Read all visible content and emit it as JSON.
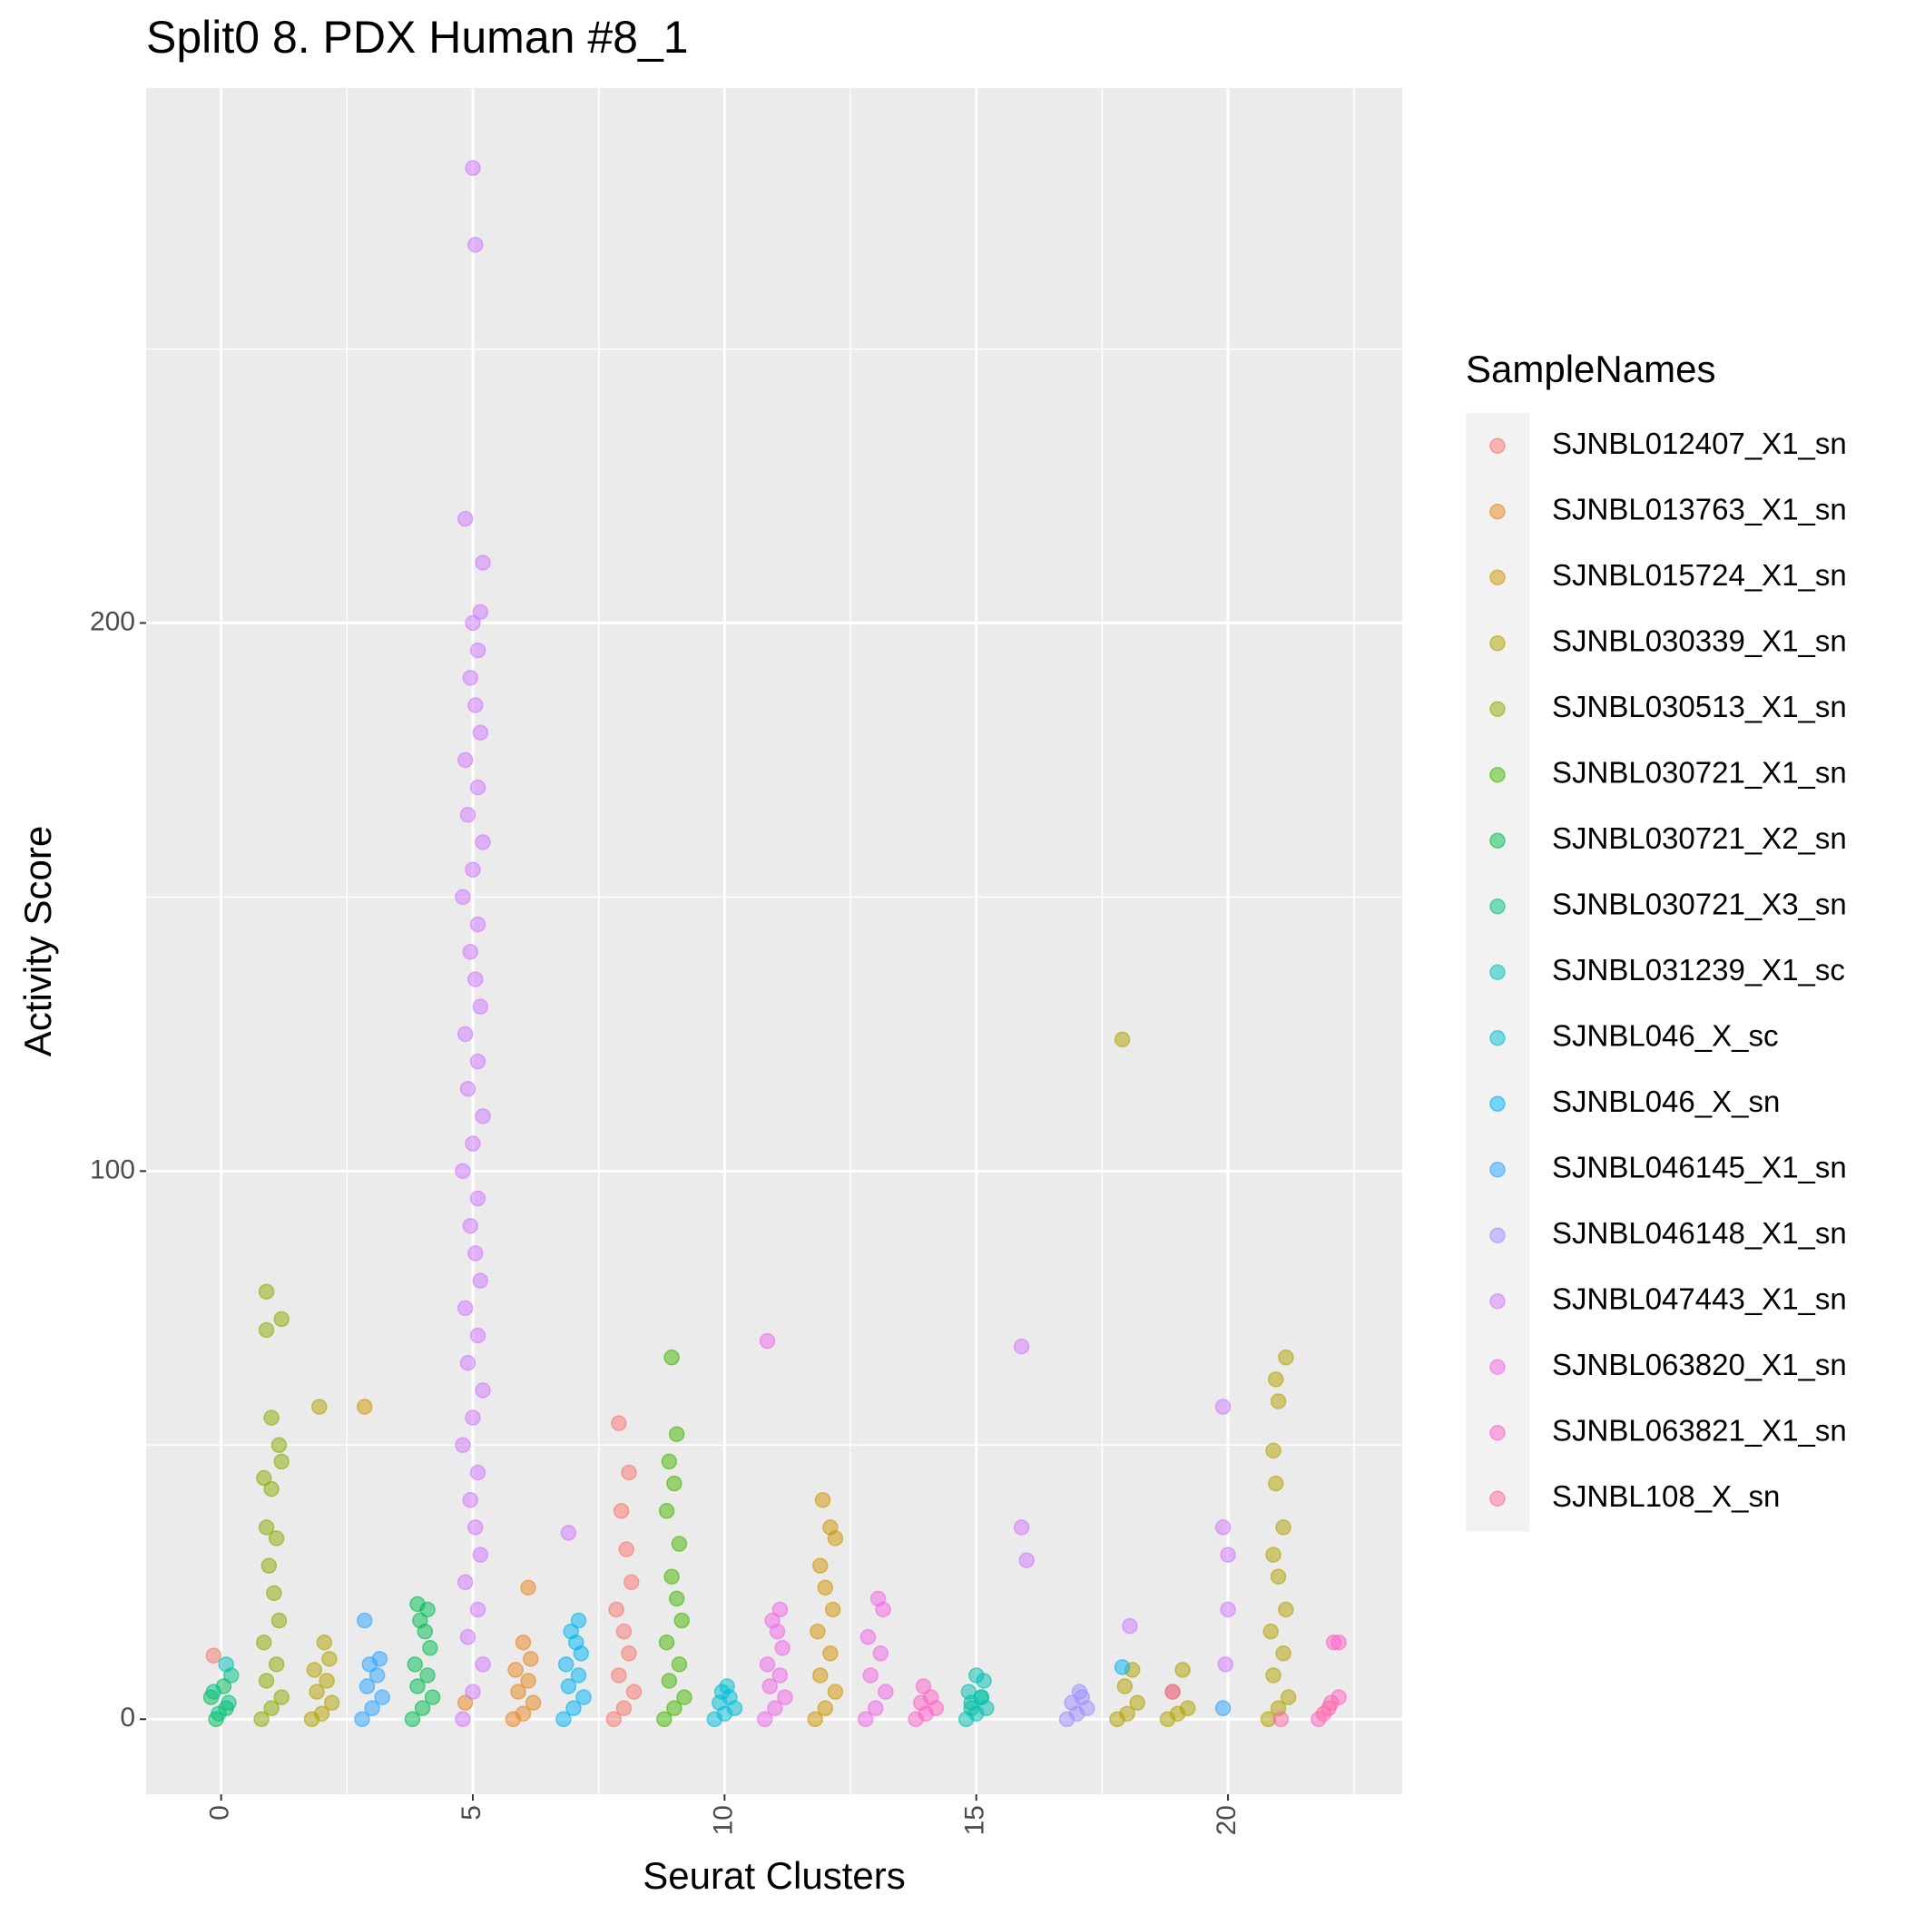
{
  "chart_data": {
    "type": "scatter",
    "title": "Split0 8. PDX Human #8_1",
    "xlabel": "Seurat Clusters",
    "ylabel": "Activity Score",
    "legend_title": "SampleNames",
    "legend_position": "right",
    "grid": true,
    "xlim": [
      -1.49,
      23.46
    ],
    "ylim": [
      -13.7,
      297.6
    ],
    "xticks": [
      0,
      5,
      10,
      15,
      20
    ],
    "yticks": [
      0,
      100,
      200
    ],
    "x_minor_grid": [
      2.5,
      7.5,
      12.5,
      17.5,
      22.5
    ],
    "y_minor_grid": [
      50,
      150,
      250
    ],
    "series": [
      {
        "name": "SJNBL012407_X1_sn",
        "color": "#F8766D",
        "x": [
          -0.15,
          7.8,
          8.0,
          8.2,
          7.9,
          8.1,
          8.0,
          7.85,
          8.15,
          8.05,
          7.95,
          8.1,
          7.9
        ],
        "values": [
          11.6,
          0,
          2,
          5,
          8,
          12,
          16,
          20,
          25,
          31,
          38,
          45,
          54
        ]
      },
      {
        "name": "SJNBL013763_X1_sn",
        "color": "#E7851E",
        "x": [
          5.8,
          6.0,
          6.2,
          5.9,
          6.1,
          5.85,
          6.15,
          6.0,
          6.1,
          4.85
        ],
        "values": [
          0,
          1,
          3,
          5,
          7,
          9,
          11,
          14,
          24,
          3
        ]
      },
      {
        "name": "SJNBL015724_X1_sn",
        "color": "#D09400",
        "x": [
          11.8,
          12.0,
          12.2,
          11.9,
          12.1,
          11.85,
          12.15,
          12.0,
          11.9,
          12.2,
          12.1,
          11.95,
          2.85
        ],
        "values": [
          0,
          2,
          5,
          8,
          12,
          16,
          20,
          24,
          28,
          33,
          35,
          40,
          57
        ]
      },
      {
        "name": "SJNBL030339_X1_sn",
        "color": "#B2A100",
        "x": [
          1.8,
          2.0,
          2.2,
          1.9,
          2.1,
          1.85,
          2.15,
          2.05,
          1.95,
          17.9,
          17.8,
          18.0,
          18.2,
          17.95,
          18.1,
          18.8,
          19.0,
          19.2,
          18.9,
          19.1,
          20.8,
          21.0,
          21.2,
          20.9,
          21.1,
          20.85,
          21.15,
          21.0,
          20.9,
          21.1,
          20.95,
          20.9,
          21.0,
          20.95,
          21.15
        ],
        "values": [
          0,
          1,
          3,
          5,
          7,
          9,
          11,
          14,
          57,
          124,
          0,
          1,
          3,
          6,
          9,
          0,
          1,
          2,
          5,
          9,
          0,
          2,
          4,
          8,
          12,
          16,
          20,
          26,
          30,
          35,
          43,
          49,
          58,
          62,
          66
        ]
      },
      {
        "name": "SJNBL030513_X1_sn",
        "color": "#89AC00",
        "x": [
          0.8,
          1.0,
          1.2,
          0.9,
          1.1,
          0.85,
          1.15,
          1.05,
          0.95,
          1.1,
          0.9,
          1.0,
          0.85,
          1.2,
          1.15,
          1.0,
          0.9,
          1.2,
          0.9
        ],
        "values": [
          0,
          2,
          4,
          7,
          10,
          14,
          18,
          23,
          28,
          33,
          35,
          42,
          44,
          47,
          50,
          55,
          71,
          73,
          78
        ]
      },
      {
        "name": "SJNBL030721_X1_sn",
        "color": "#45B500",
        "x": [
          8.8,
          9.0,
          9.2,
          8.9,
          9.1,
          8.85,
          9.15,
          9.05,
          8.95,
          9.1,
          8.85,
          9.0,
          8.9,
          9.05,
          8.95
        ],
        "values": [
          0,
          2,
          4,
          7,
          10,
          14,
          18,
          22,
          26,
          32,
          38,
          43,
          47,
          52,
          66
        ]
      },
      {
        "name": "SJNBL030721_X2_sn",
        "color": "#00BC51",
        "x": [
          3.8,
          4.0,
          4.2,
          3.9,
          4.1,
          3.85,
          4.15,
          4.05,
          3.95,
          4.1,
          3.9,
          -0.1,
          0.1,
          -0.2,
          0.05
        ],
        "values": [
          0,
          2,
          4,
          6,
          8,
          10,
          13,
          16,
          18,
          20,
          21,
          0,
          2,
          4,
          6
        ]
      },
      {
        "name": "SJNBL030721_X3_sn",
        "color": "#00C087",
        "x": [
          -0.05,
          0.15,
          -0.15,
          0.2,
          14.9,
          15.1
        ],
        "values": [
          1,
          3,
          5,
          8,
          2,
          4
        ]
      },
      {
        "name": "SJNBL031239_X1_sc",
        "color": "#00C0B2",
        "x": [
          14.8,
          15.0,
          15.2,
          14.9,
          15.1,
          14.85,
          15.15,
          15.0,
          0.1
        ],
        "values": [
          0,
          1,
          2,
          3,
          4,
          5,
          7,
          8,
          10
        ]
      },
      {
        "name": "SJNBL046_X_sc",
        "color": "#00BCD6",
        "x": [
          9.8,
          10.0,
          10.2,
          9.9,
          10.1,
          9.95,
          10.05
        ],
        "values": [
          0,
          1,
          2,
          3,
          4,
          5,
          6
        ]
      },
      {
        "name": "SJNBL046_X_sn",
        "color": "#00B3F2",
        "x": [
          6.8,
          7.0,
          7.2,
          6.9,
          7.1,
          6.85,
          7.15,
          7.05,
          6.95,
          7.1,
          17.9
        ],
        "values": [
          0,
          2,
          4,
          6,
          8,
          10,
          12,
          14,
          16,
          18,
          9.5
        ]
      },
      {
        "name": "SJNBL046145_X1_sn",
        "color": "#29A3FF",
        "x": [
          2.8,
          3.0,
          3.2,
          2.9,
          3.1,
          2.95,
          3.15,
          2.85,
          19.9
        ],
        "values": [
          0,
          2,
          4,
          6,
          8,
          10,
          11,
          18,
          2
        ]
      },
      {
        "name": "SJNBL046148_X1_sn",
        "color": "#9C8DFF",
        "x": [
          16.8,
          17.0,
          17.2,
          16.9,
          17.1,
          17.05
        ],
        "values": [
          0,
          1,
          2,
          3,
          4,
          5
        ]
      },
      {
        "name": "SJNBL047443_X1_sn",
        "color": "#D277FF",
        "x": [
          4.8,
          5.0,
          5.2,
          4.9,
          5.1,
          4.85,
          5.15,
          5.05,
          4.95,
          5.1,
          4.8,
          5.0,
          5.2,
          4.9,
          5.1,
          4.85,
          5.15,
          5.05,
          4.95,
          5.1,
          4.8,
          5.0,
          5.2,
          4.9,
          5.1,
          4.85,
          5.15,
          5.05,
          4.95,
          5.1,
          4.8,
          5.0,
          5.2,
          4.9,
          5.1,
          4.85,
          5.15,
          5.05,
          4.95,
          5.1,
          5.0,
          5.15,
          5.2,
          4.85,
          5.05,
          5.0,
          6.9,
          15.9,
          15.9,
          16.0,
          18.05,
          19.9,
          19.9,
          20.0,
          20.0,
          19.95
        ],
        "values": [
          0,
          5,
          10,
          15,
          20,
          25,
          30,
          35,
          40,
          45,
          50,
          55,
          60,
          65,
          70,
          75,
          80,
          85,
          90,
          95,
          100,
          105,
          110,
          115,
          120,
          125,
          130,
          135,
          140,
          145,
          150,
          155,
          160,
          165,
          170,
          175,
          180,
          185,
          190,
          195,
          200,
          202,
          211,
          219,
          269,
          283,
          34,
          68,
          35,
          29,
          17,
          57,
          35,
          30,
          20,
          10
        ]
      },
      {
        "name": "SJNBL063820_X1_sn",
        "color": "#F166E8",
        "x": [
          10.8,
          11.0,
          11.2,
          10.9,
          11.1,
          10.85,
          11.15,
          11.05,
          10.95,
          11.1,
          10.85,
          12.8,
          13.0,
          13.2,
          12.9,
          13.1,
          12.85,
          13.15,
          13.05
        ],
        "values": [
          0,
          2,
          4,
          6,
          8,
          10,
          13,
          16,
          18,
          20,
          69,
          0,
          2,
          5,
          8,
          12,
          15,
          20,
          22
        ]
      },
      {
        "name": "SJNBL063821_X1_sn",
        "color": "#FF61C7",
        "x": [
          13.8,
          14.0,
          14.2,
          13.9,
          14.1,
          13.95,
          21.8,
          22.0,
          22.2,
          22.1,
          22.2,
          18.9
        ],
        "values": [
          0,
          1,
          2,
          3,
          4,
          6,
          0,
          2,
          4,
          14,
          14,
          5
        ]
      },
      {
        "name": "SJNBL108_X_sn",
        "color": "#FF689E",
        "x": [
          21.9,
          22.05,
          21.05
        ],
        "values": [
          1,
          3,
          0
        ]
      }
    ]
  }
}
